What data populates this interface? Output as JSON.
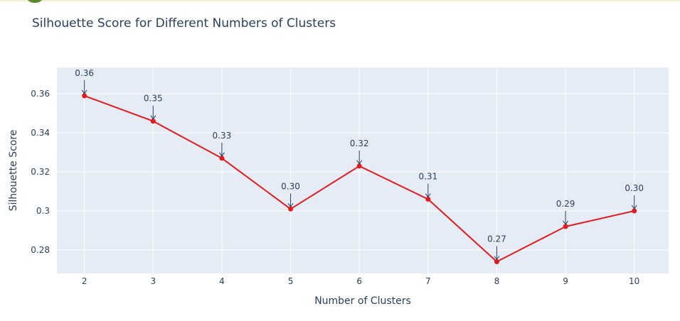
{
  "chart_data": {
    "type": "line",
    "title": "Silhouette Score for Different Numbers of Clusters",
    "xlabel": "Number of Clusters",
    "ylabel": "Silhouette Score",
    "x": [
      2,
      3,
      4,
      5,
      6,
      7,
      8,
      9,
      10
    ],
    "y": [
      0.359,
      0.346,
      0.327,
      0.301,
      0.323,
      0.306,
      0.274,
      0.292,
      0.3
    ],
    "annotations": [
      "0.36",
      "0.35",
      "0.33",
      "0.30",
      "0.32",
      "0.31",
      "0.27",
      "0.29",
      "0.30"
    ],
    "xticks": [
      "2",
      "3",
      "4",
      "5",
      "6",
      "7",
      "8",
      "9",
      "10"
    ],
    "yticks": [
      {
        "value": 0.28,
        "label": "0.28"
      },
      {
        "value": 0.3,
        "label": "0.3"
      },
      {
        "value": 0.32,
        "label": "0.32"
      },
      {
        "value": 0.34,
        "label": "0.34"
      },
      {
        "value": 0.36,
        "label": "0.36"
      }
    ],
    "xlim": [
      1.6,
      10.5
    ],
    "ylim": [
      0.268,
      0.3735
    ],
    "grid": true,
    "line_color": "#e41a1c",
    "marker_color": "#e41a1c",
    "plot_background": "#e5ecf6",
    "text_color": "#2a3f5f"
  }
}
